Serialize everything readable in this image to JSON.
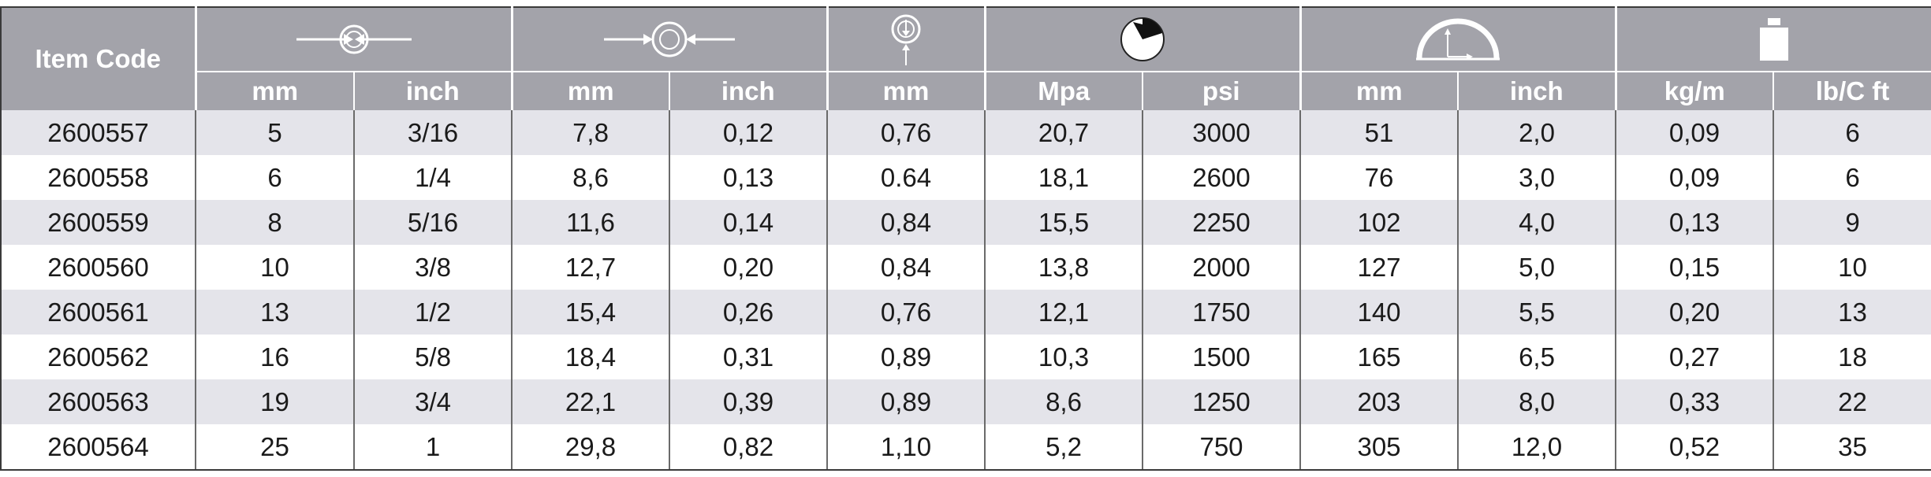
{
  "header": {
    "item_code_label": "Item Code",
    "icons": [
      "inner-diameter-icon",
      "outer-diameter-icon",
      "wall-thickness-icon",
      "working-pressure-icon",
      "bend-radius-icon",
      "weight-icon"
    ],
    "units": [
      "mm",
      "inch",
      "mm",
      "inch",
      "mm",
      "Mpa",
      "psi",
      "mm",
      "inch",
      "kg/m",
      "lb/C ft"
    ]
  },
  "rows": [
    [
      "2600557",
      "5",
      "3/16",
      "7,8",
      "0,12",
      "0,76",
      "20,7",
      "3000",
      "51",
      "2,0",
      "0,09",
      "6"
    ],
    [
      "2600558",
      "6",
      "1/4",
      "8,6",
      "0,13",
      "0.64",
      "18,1",
      "2600",
      "76",
      "3,0",
      "0,09",
      "6"
    ],
    [
      "2600559",
      "8",
      "5/16",
      "11,6",
      "0,14",
      "0,84",
      "15,5",
      "2250",
      "102",
      "4,0",
      "0,13",
      "9"
    ],
    [
      "2600560",
      "10",
      "3/8",
      "12,7",
      "0,20",
      "0,84",
      "13,8",
      "2000",
      "127",
      "5,0",
      "0,15",
      "10"
    ],
    [
      "2600561",
      "13",
      "1/2",
      "15,4",
      "0,26",
      "0,76",
      "12,1",
      "1750",
      "140",
      "5,5",
      "0,20",
      "13"
    ],
    [
      "2600562",
      "16",
      "5/8",
      "18,4",
      "0,31",
      "0,89",
      "10,3",
      "1500",
      "165",
      "6,5",
      "0,27",
      "18"
    ],
    [
      "2600563",
      "19",
      "3/4",
      "22,1",
      "0,39",
      "0,89",
      "8,6",
      "1250",
      "203",
      "8,0",
      "0,33",
      "22"
    ],
    [
      "2600564",
      "25",
      "1",
      "29,8",
      "0,82",
      "1,10",
      "5,2",
      "750",
      "305",
      "12,0",
      "0,52",
      "35"
    ]
  ],
  "colors": {
    "header_bg": "#a3a3aa",
    "stripe_bg": "#e4e4ea",
    "text": "#1a1a1a"
  }
}
